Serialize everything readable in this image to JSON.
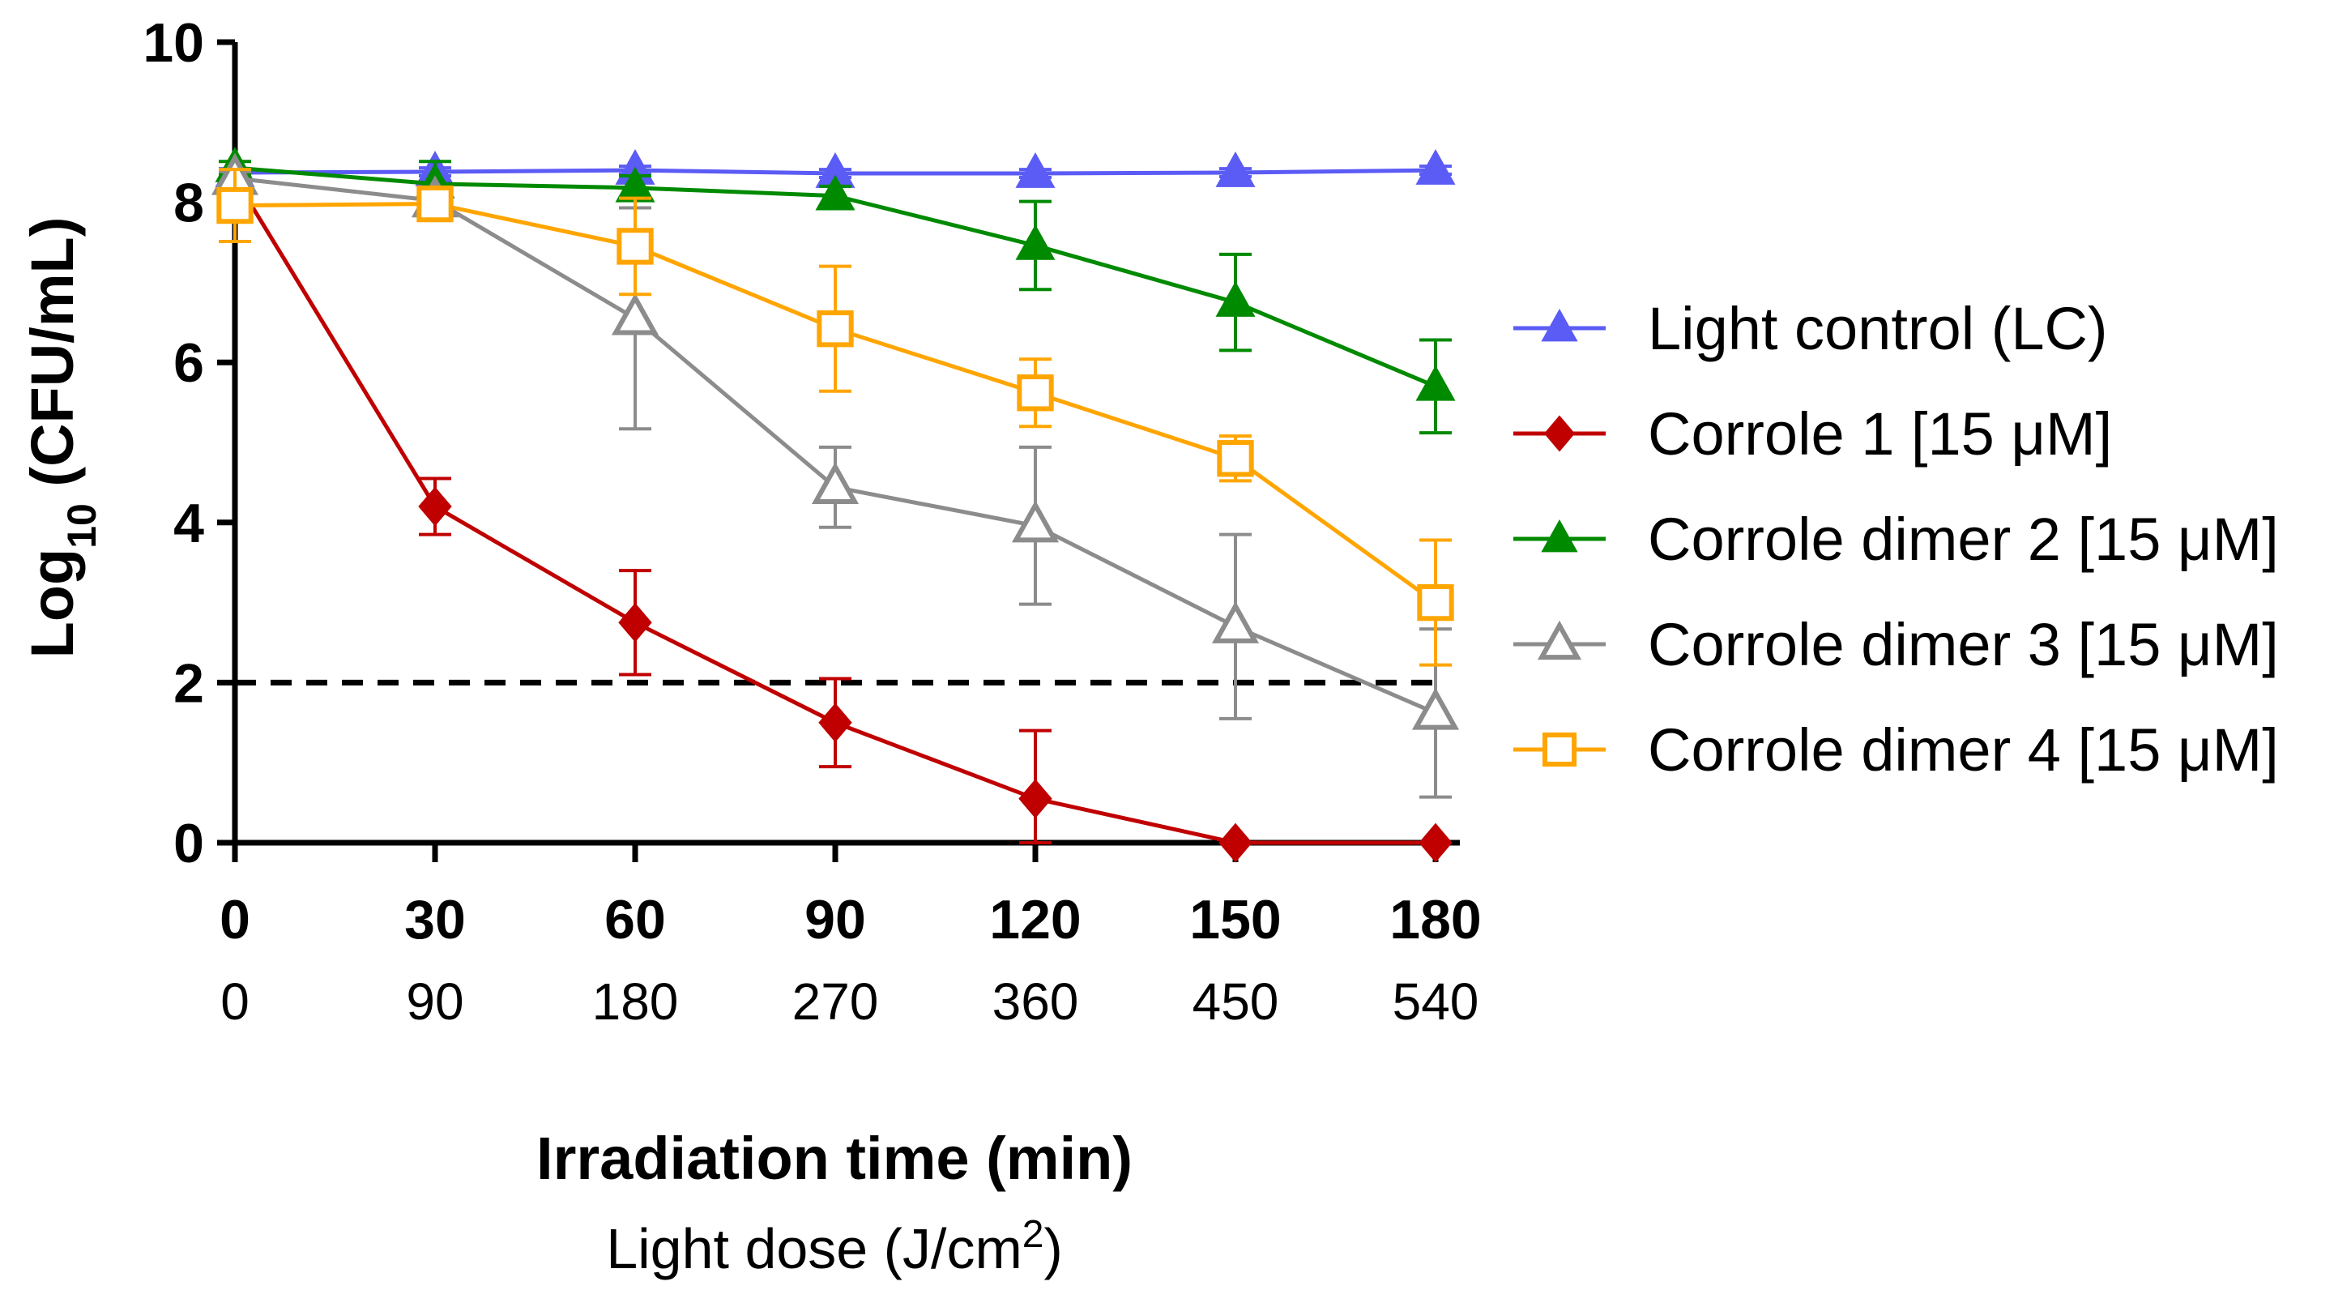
{
  "chart_data": {
    "type": "line",
    "title": "",
    "ylabel": "Log10 (CFU/mL)",
    "ylabel_main": "Log",
    "ylabel_sub": "10",
    "ylabel_rest": " (CFU/mL)",
    "xlabel": "Irradiation time (min)",
    "xlabel2": "Light dose (J/cm2)",
    "xlabel2_main": "Light dose (J/cm",
    "xlabel2_sup": "2",
    "xlabel2_end": ")",
    "x": [
      0,
      30,
      60,
      90,
      120,
      150,
      180
    ],
    "x_tick_labels": [
      "0",
      "30",
      "60",
      "90",
      "120",
      "150",
      "180"
    ],
    "x_secondary_tick_labels": [
      "0",
      "90",
      "180",
      "270",
      "360",
      "450",
      "540"
    ],
    "xlim": [
      0,
      180
    ],
    "ylim": [
      0,
      10
    ],
    "y_ticks": [
      0,
      2,
      4,
      6,
      8,
      10
    ],
    "y_tick_labels": [
      "0",
      "2",
      "4",
      "6",
      "8",
      "10"
    ],
    "threshold_line": {
      "y": 2,
      "style": "dashed",
      "color": "#000000"
    },
    "legend_position": "right",
    "series": [
      {
        "name": "Light control (LC)",
        "color": "#5B5BF5",
        "marker": "triangle-filled",
        "values": [
          8.37,
          8.38,
          8.4,
          8.36,
          8.36,
          8.37,
          8.4
        ],
        "errors": [
          0.05,
          0.05,
          0.05,
          0.05,
          0.05,
          0.05,
          0.05
        ]
      },
      {
        "name": "Corrole 1 [15 μM]",
        "color": "#C00000",
        "marker": "diamond-filled",
        "values": [
          8.3,
          4.2,
          2.75,
          1.5,
          0.55,
          0.0,
          0.0
        ],
        "errors": [
          0.1,
          0.35,
          0.65,
          0.55,
          0.85,
          0.0,
          0.0
        ]
      },
      {
        "name": "Corrole dimer 2 [15 μM]",
        "color": "#008A00",
        "marker": "triangle-filled",
        "values": [
          8.43,
          8.23,
          8.18,
          8.08,
          7.46,
          6.75,
          5.7
        ],
        "errors": [
          0.08,
          0.28,
          0.15,
          0.12,
          0.55,
          0.6,
          0.58
        ]
      },
      {
        "name": "Corrole dimer 3 [15 μM]",
        "color": "#8C8C8C",
        "marker": "triangle-open",
        "values": [
          8.3,
          8.02,
          6.55,
          4.44,
          3.96,
          2.7,
          1.62
        ],
        "errors": [
          0.08,
          0.1,
          1.38,
          0.5,
          0.98,
          1.15,
          1.05
        ]
      },
      {
        "name": "Corrole dimer 4 [15 μM]",
        "color": "#FFA500",
        "marker": "square-open",
        "values": [
          7.96,
          7.98,
          7.45,
          6.42,
          5.62,
          4.8,
          3.0
        ],
        "errors": [
          0.45,
          0.1,
          0.6,
          0.78,
          0.42,
          0.28,
          0.78
        ]
      }
    ]
  }
}
